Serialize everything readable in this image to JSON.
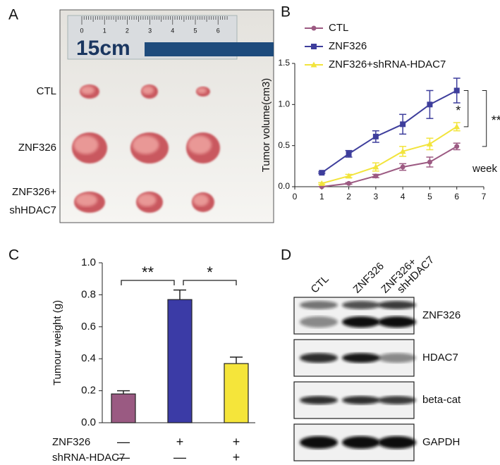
{
  "panel_a": {
    "label": "A",
    "ruler_text": "15cm",
    "ruler_numbers": [
      "0",
      "1",
      "2",
      "3",
      "4",
      "5",
      "6"
    ],
    "rows": [
      [
        "CTL"
      ],
      [
        "ZNF326"
      ],
      [
        "ZNF326+",
        "shHDAC7"
      ]
    ]
  },
  "chart_data": [
    {
      "type": "line",
      "panel_label": "B",
      "ylabel": "Tumor volume(cm3)",
      "xlabel": "week",
      "x": [
        1,
        2,
        3,
        4,
        5,
        6
      ],
      "xlim": [
        0,
        7
      ],
      "xticks": [
        0,
        1,
        2,
        3,
        4,
        5,
        6,
        7
      ],
      "ylim": [
        0,
        1.5
      ],
      "yticks": [
        {
          "value": 0,
          "label": "0.0"
        },
        {
          "value": 0.5,
          "label": "0.5"
        },
        {
          "value": 1,
          "label": "1.0"
        },
        {
          "value": 1.5,
          "label": "1.5"
        }
      ],
      "series": [
        {
          "name": "CTL",
          "color": "#9c5a82",
          "marker": "circle",
          "values": [
            0,
            0.04,
            0.13,
            0.24,
            0.3,
            0.49
          ],
          "errors": [
            0,
            0.01,
            0.02,
            0.04,
            0.06,
            0.04
          ]
        },
        {
          "name": "ZNF326",
          "color": "#3e3e9c",
          "marker": "square",
          "values": [
            0.17,
            0.4,
            0.61,
            0.76,
            1.0,
            1.17
          ],
          "errors": [
            0.01,
            0.04,
            0.07,
            0.12,
            0.17,
            0.15
          ]
        },
        {
          "name": "ZNF326+shRNA-HDAC7",
          "color": "#f2e43c",
          "marker": "triangle",
          "values": [
            0.04,
            0.13,
            0.24,
            0.43,
            0.52,
            0.73
          ],
          "errors": [
            0.01,
            0.02,
            0.05,
            0.06,
            0.07,
            0.05
          ]
        }
      ],
      "annotations": [
        "*",
        "**"
      ]
    },
    {
      "type": "bar",
      "panel_label": "C",
      "ylabel": "Tumour weight (g)",
      "categories": [
        null,
        null,
        null
      ],
      "values": [
        0.18,
        0.77,
        0.37
      ],
      "errors": [
        0.02,
        0.06,
        0.04
      ],
      "colors": [
        "#9a5a82",
        "#3b3ba6",
        "#f5e53a"
      ],
      "ylim": [
        0,
        1
      ],
      "yticks": [
        {
          "value": 0,
          "label": "0.0"
        },
        {
          "value": 0.2,
          "label": "0.2"
        },
        {
          "value": 0.4,
          "label": "0.4"
        },
        {
          "value": 0.6,
          "label": "0.6"
        },
        {
          "value": 0.8,
          "label": "0.8"
        },
        {
          "value": 1,
          "label": "1.0"
        }
      ],
      "conditions": [
        {
          "name": "ZNF326",
          "marks": [
            "—",
            "+",
            "+"
          ]
        },
        {
          "name": "shRNA-HDAC7",
          "marks": [
            "—",
            "—",
            "+"
          ]
        }
      ],
      "annotations": [
        "**",
        "*"
      ]
    }
  ],
  "panel_d": {
    "label": "D",
    "lanes": [
      [
        "CTL"
      ],
      [
        "ZNF326"
      ],
      [
        "ZNF326+",
        "shHDAC7"
      ]
    ],
    "rows": [
      "ZNF326",
      "HDAC7",
      "beta-cat",
      "GAPDH"
    ]
  }
}
